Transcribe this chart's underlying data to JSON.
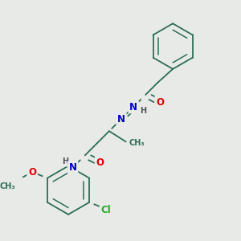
{
  "bg_color": "#e8eae8",
  "bond_color": "#2d6e55",
  "atom_colors": {
    "O": "#dd0000",
    "N": "#0000cc",
    "Cl": "#22aa22",
    "H": "#555555",
    "C": "#2d6e55"
  },
  "font_size_atom": 8.5,
  "font_size_small": 7.0
}
